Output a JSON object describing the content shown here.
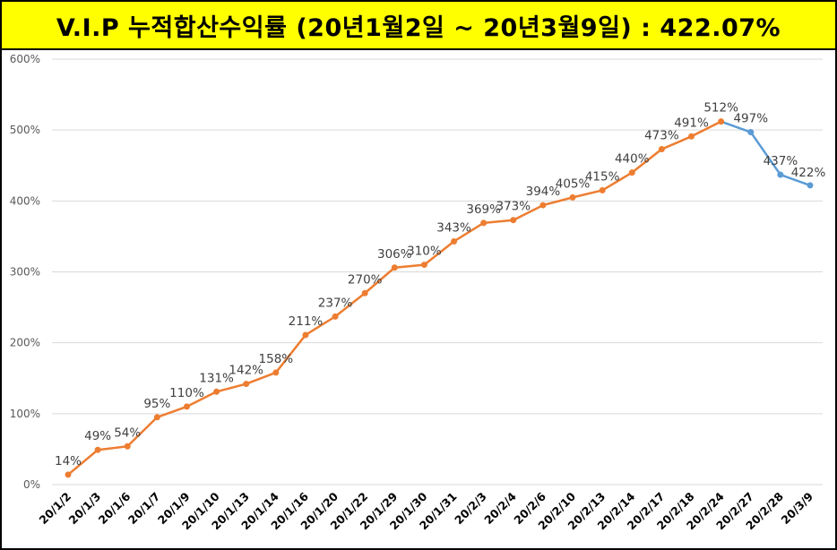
{
  "title": "V.I.P 누적합산수익률 (20년1월2일 ~ 20년3월9일) : 422.07%",
  "colors": {
    "title_background": "#ffff00",
    "primary_line": "#ed7d31",
    "secondary_line": "#5b9bd5",
    "grid": "#d9d9d9"
  },
  "chart_data": {
    "type": "line",
    "title": "V.I.P 누적합산수익률 (20년1월2일 ~ 20년3월9일) : 422.07%",
    "xlabel": "",
    "ylabel": "",
    "ylim": [
      0,
      600
    ],
    "y_ticks": [
      0,
      100,
      200,
      300,
      400,
      500,
      600
    ],
    "y_tick_labels": [
      "0%",
      "100%",
      "200%",
      "300%",
      "400%",
      "500%",
      "600%"
    ],
    "grid": true,
    "legend": "none",
    "categories": [
      "20/1/2",
      "20/1/3",
      "20/1/6",
      "20/1/7",
      "20/1/9",
      "20/1/10",
      "20/1/13",
      "20/1/14",
      "20/1/16",
      "20/1/20",
      "20/1/22",
      "20/1/29",
      "20/1/30",
      "20/1/31",
      "20/2/3",
      "20/2/4",
      "20/2/6",
      "20/2/10",
      "20/2/13",
      "20/2/14",
      "20/2/17",
      "20/2/18",
      "20/2/24",
      "20/2/27",
      "20/2/28",
      "20/3/9"
    ],
    "values": [
      14,
      49,
      54,
      95,
      110,
      131,
      142,
      158,
      211,
      237,
      270,
      306,
      310,
      343,
      369,
      373,
      394,
      405,
      415,
      440,
      473,
      491,
      512,
      497,
      437,
      422
    ],
    "data_labels": [
      "14%",
      "49%",
      "54%",
      "95%",
      "110%",
      "131%",
      "142%",
      "158%",
      "211%",
      "237%",
      "270%",
      "306%",
      "310%",
      "343%",
      "369%",
      "373%",
      "394%",
      "405%",
      "415%",
      "440%",
      "473%",
      "491%",
      "512%",
      "497%",
      "437%",
      "422%"
    ],
    "segment_colors": {
      "rising_through_index": 22,
      "rising": "#ed7d31",
      "falling": "#5b9bd5"
    }
  }
}
